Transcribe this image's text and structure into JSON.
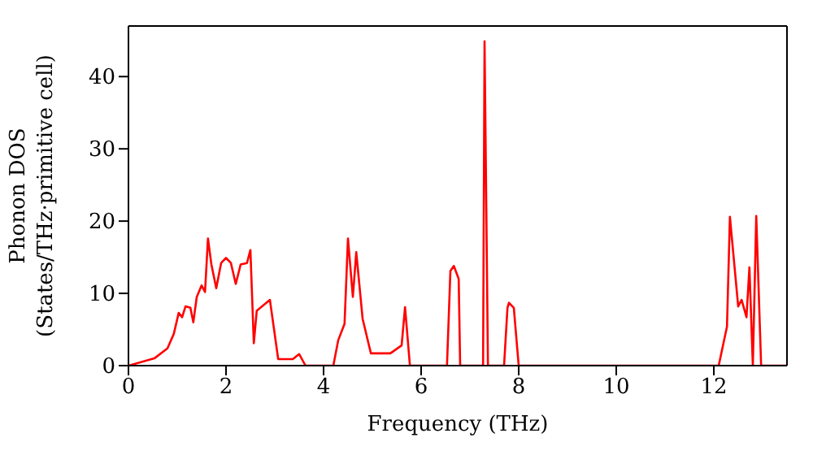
{
  "chart_data": {
    "type": "line",
    "xlabel": "Frequency (THz)",
    "ylabel": "Phonon DOS\n(States/THz·primitive cell)",
    "xlim": [
      0,
      13.5
    ],
    "ylim": [
      0,
      47
    ],
    "xticks": [
      0,
      2,
      4,
      6,
      8,
      10,
      12
    ],
    "yticks": [
      0,
      10,
      20,
      30,
      40
    ],
    "marker": "none",
    "line_style": "solid",
    "x": [
      0,
      0.53,
      0.8,
      0.93,
      1.03,
      1.1,
      1.17,
      1.27,
      1.33,
      1.4,
      1.5,
      1.57,
      1.63,
      1.7,
      1.8,
      1.9,
      2.0,
      2.1,
      2.2,
      2.3,
      2.43,
      2.5,
      2.57,
      2.63,
      2.9,
      3.07,
      3.37,
      3.5,
      3.63,
      4.2,
      4.3,
      4.43,
      4.5,
      4.6,
      4.67,
      4.8,
      4.97,
      5.37,
      5.6,
      5.67,
      5.77,
      6.53,
      6.6,
      6.67,
      6.77,
      6.8,
      7.27,
      7.3,
      7.37,
      7.7,
      7.77,
      7.8,
      7.9,
      8.0,
      12.1,
      12.27,
      12.33,
      12.5,
      12.57,
      12.67,
      12.73,
      12.8,
      12.87,
      12.97,
      13.5
    ],
    "series": [
      {
        "color": "#ff0000",
        "values": [
          0,
          1,
          2.4,
          4.4,
          7.3,
          6.7,
          8.2,
          8,
          6,
          9.5,
          11.1,
          10.2,
          17.6,
          14,
          10.7,
          14.2,
          14.9,
          14.2,
          11.3,
          14,
          14.2,
          16,
          3.1,
          7.6,
          9.1,
          0.9,
          0.9,
          1.6,
          0,
          0,
          3.5,
          5.8,
          17.6,
          9.5,
          15.7,
          6.5,
          1.7,
          1.7,
          2.8,
          8.1,
          0,
          0,
          13.1,
          13.8,
          12,
          0,
          0,
          44.9,
          0,
          0,
          8,
          8.7,
          8,
          0,
          0,
          5.4,
          20.6,
          8.2,
          9.1,
          6.7,
          13.6,
          0,
          20.7,
          0,
          0
        ]
      }
    ]
  }
}
